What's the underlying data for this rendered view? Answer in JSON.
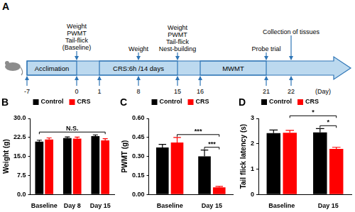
{
  "timeline": {
    "panel": "A",
    "ticks": [
      -7,
      0,
      1,
      8,
      15,
      16,
      21,
      22
    ],
    "unit_label": "(Day)",
    "segments": [
      {
        "label": "Acclimation",
        "from": -7,
        "to": 0
      },
      {
        "label": "CRS:6h /14 days",
        "from": 1,
        "to": 15
      },
      {
        "label": "MWMT",
        "from": 16,
        "to": 21
      }
    ],
    "events": [
      {
        "day": 0,
        "lines": [
          "Weight",
          "PWMT",
          "Tail-flick",
          "(Baseline)"
        ]
      },
      {
        "day": 8,
        "lines": [
          "Weight"
        ]
      },
      {
        "day": 15,
        "lines": [
          "Weight",
          "PWMT",
          "Tail-flick",
          "Nest-building"
        ]
      },
      {
        "day": 21,
        "lines": [
          "Probe trial"
        ]
      },
      {
        "day": 22,
        "lines": [
          "Collection of tissues"
        ]
      }
    ]
  },
  "chart_data": [
    {
      "panel": "B",
      "type": "bar",
      "categories": [
        "Baseline",
        "Day 8",
        "Day 15"
      ],
      "y_label": "Weight (g)",
      "series": [
        {
          "name": "Control",
          "color": "#000000",
          "values": [
            20.8,
            22.2,
            23.0
          ],
          "errors": [
            0.6,
            0.5,
            0.5
          ]
        },
        {
          "name": "CRS",
          "color": "#ff0000",
          "values": [
            21.7,
            22.0,
            21.3
          ],
          "errors": [
            0.6,
            0.6,
            0.7
          ]
        }
      ],
      "ylim": [
        0,
        30
      ],
      "yticks": [
        {
          "value": 0,
          "label": "0.0"
        },
        7.5,
        {
          "value": 15,
          "label": "15.0"
        },
        22.5,
        {
          "value": 30,
          "label": "30.0"
        }
      ],
      "legend": "upper left",
      "grid": false,
      "annotations": [
        {
          "text": "N.S.",
          "from": {
            "category": "Baseline",
            "series": "Control"
          },
          "to": {
            "category": "Day 15",
            "series": "CRS"
          }
        }
      ]
    },
    {
      "panel": "C",
      "type": "bar",
      "categories": [
        "Baseline",
        "Day 15"
      ],
      "y_label": "PWMT (g)",
      "series": [
        {
          "name": "Control",
          "color": "#000000",
          "values": [
            0.37,
            0.3
          ],
          "errors": [
            0.025,
            0.05
          ]
        },
        {
          "name": "CRS",
          "color": "#ff0000",
          "values": [
            0.41,
            0.055
          ],
          "errors": [
            0.04,
            0.008
          ]
        }
      ],
      "ylim": [
        0,
        0.6
      ],
      "yticks": [
        {
          "value": 0,
          "label": "0.00"
        },
        0.15,
        {
          "value": 0.3,
          "label": "0.30"
        },
        0.45,
        {
          "value": 0.6,
          "label": "0.60"
        }
      ],
      "legend": "upper left",
      "grid": false,
      "annotations": [
        {
          "text": "***",
          "from": {
            "category": "Baseline",
            "series": "CRS"
          },
          "to": {
            "category": "Day 15",
            "series": "CRS"
          }
        },
        {
          "text": "***",
          "from": {
            "category": "Day 15",
            "series": "Control"
          },
          "to": {
            "category": "Day 15",
            "series": "CRS"
          }
        }
      ]
    },
    {
      "panel": "D",
      "type": "bar",
      "categories": [
        "Baseline",
        "Day 15"
      ],
      "y_label": "Tail flick latency (s)",
      "series": [
        {
          "name": "Control",
          "color": "#000000",
          "values": [
            2.42,
            2.45
          ],
          "errors": [
            0.12,
            0.15
          ]
        },
        {
          "name": "CRS",
          "color": "#ff0000",
          "values": [
            2.43,
            1.8
          ],
          "errors": [
            0.1,
            0.06
          ]
        }
      ],
      "ylim": [
        0,
        3
      ],
      "yticks": [
        0,
        1,
        2,
        3
      ],
      "legend": "upper left",
      "grid": false,
      "annotations": [
        {
          "text": "*",
          "from": {
            "category": "Baseline",
            "series": "CRS"
          },
          "to": {
            "category": "Day 15",
            "series": "CRS"
          }
        },
        {
          "text": "*",
          "from": {
            "category": "Day 15",
            "series": "Control"
          },
          "to": {
            "category": "Day 15",
            "series": "CRS"
          }
        }
      ]
    }
  ]
}
